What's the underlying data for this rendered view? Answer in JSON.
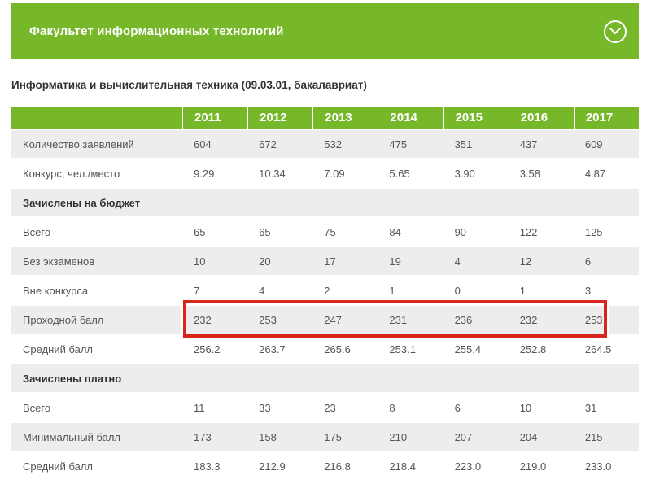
{
  "accordion": {
    "title": "Факультет информационных технологий",
    "icon": "chevron-down-circle"
  },
  "subtitle": "Информатика и вычислительная техника (09.03.01, бакалавриат)",
  "table": {
    "columns": [
      "2011",
      "2012",
      "2013",
      "2014",
      "2015",
      "2016",
      "2017"
    ],
    "rows": [
      {
        "label": "Количество заявлений",
        "type": "data",
        "values": [
          "604",
          "672",
          "532",
          "475",
          "351",
          "437",
          "609"
        ]
      },
      {
        "label": "Конкурс, чел./место",
        "type": "data",
        "values": [
          "9.29",
          "10.34",
          "7.09",
          "5.65",
          "3.90",
          "3.58",
          "4.87"
        ]
      },
      {
        "label": "Зачислены на бюджет",
        "type": "section",
        "values": []
      },
      {
        "label": "Всего",
        "type": "data",
        "values": [
          "65",
          "65",
          "75",
          "84",
          "90",
          "122",
          "125"
        ]
      },
      {
        "label": "Без экзаменов",
        "type": "data",
        "values": [
          "10",
          "20",
          "17",
          "19",
          "4",
          "12",
          "6"
        ]
      },
      {
        "label": "Вне конкурса",
        "type": "data",
        "values": [
          "7",
          "4",
          "2",
          "1",
          "0",
          "1",
          "3"
        ]
      },
      {
        "label": "Проходной балл",
        "type": "data",
        "values": [
          "232",
          "253",
          "247",
          "231",
          "236",
          "232",
          "253"
        ],
        "highlighted": true
      },
      {
        "label": "Средний балл",
        "type": "data",
        "values": [
          "256.2",
          "263.7",
          "265.6",
          "253.1",
          "255.4",
          "252.8",
          "264.5"
        ]
      },
      {
        "label": "Зачислены платно",
        "type": "section",
        "values": []
      },
      {
        "label": "Всего",
        "type": "data",
        "values": [
          "11",
          "33",
          "23",
          "8",
          "6",
          "10",
          "31"
        ]
      },
      {
        "label": "Минимальный балл",
        "type": "data",
        "values": [
          "173",
          "158",
          "175",
          "210",
          "207",
          "204",
          "215"
        ]
      },
      {
        "label": "Средний балл",
        "type": "data",
        "values": [
          "183.3",
          "212.9",
          "216.8",
          "218.4",
          "223.0",
          "219.0",
          "233.0"
        ]
      }
    ]
  },
  "colors": {
    "accent_green": "#76b82a",
    "row_gray": "#ededed",
    "highlight_red": "#d8251d",
    "header_text": "#ffffff",
    "body_text": "#555555",
    "section_text": "#333333"
  }
}
